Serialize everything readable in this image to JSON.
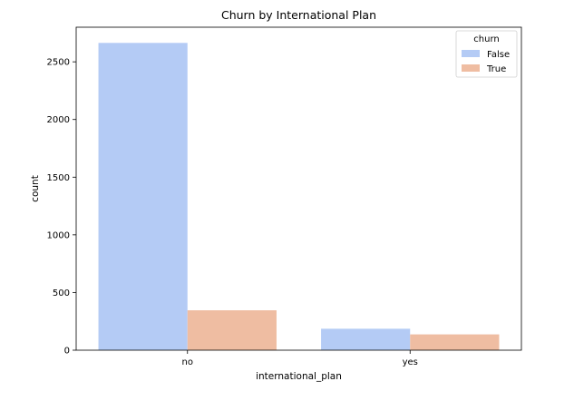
{
  "chart_data": {
    "type": "bar",
    "title": "Churn by International Plan",
    "xlabel": "international_plan",
    "ylabel": "count",
    "categories": [
      "no",
      "yes"
    ],
    "series": [
      {
        "name": "False",
        "values": [
          2664,
          186
        ],
        "color": "#b4cbf5"
      },
      {
        "name": "True",
        "values": [
          346,
          137
        ],
        "color": "#efbda2"
      }
    ],
    "ylim": [
      0,
      2800
    ],
    "yticks": [
      0,
      500,
      1000,
      1500,
      2000,
      2500
    ],
    "legend": {
      "title": "churn",
      "placement": "top-right"
    },
    "grid": false
  }
}
